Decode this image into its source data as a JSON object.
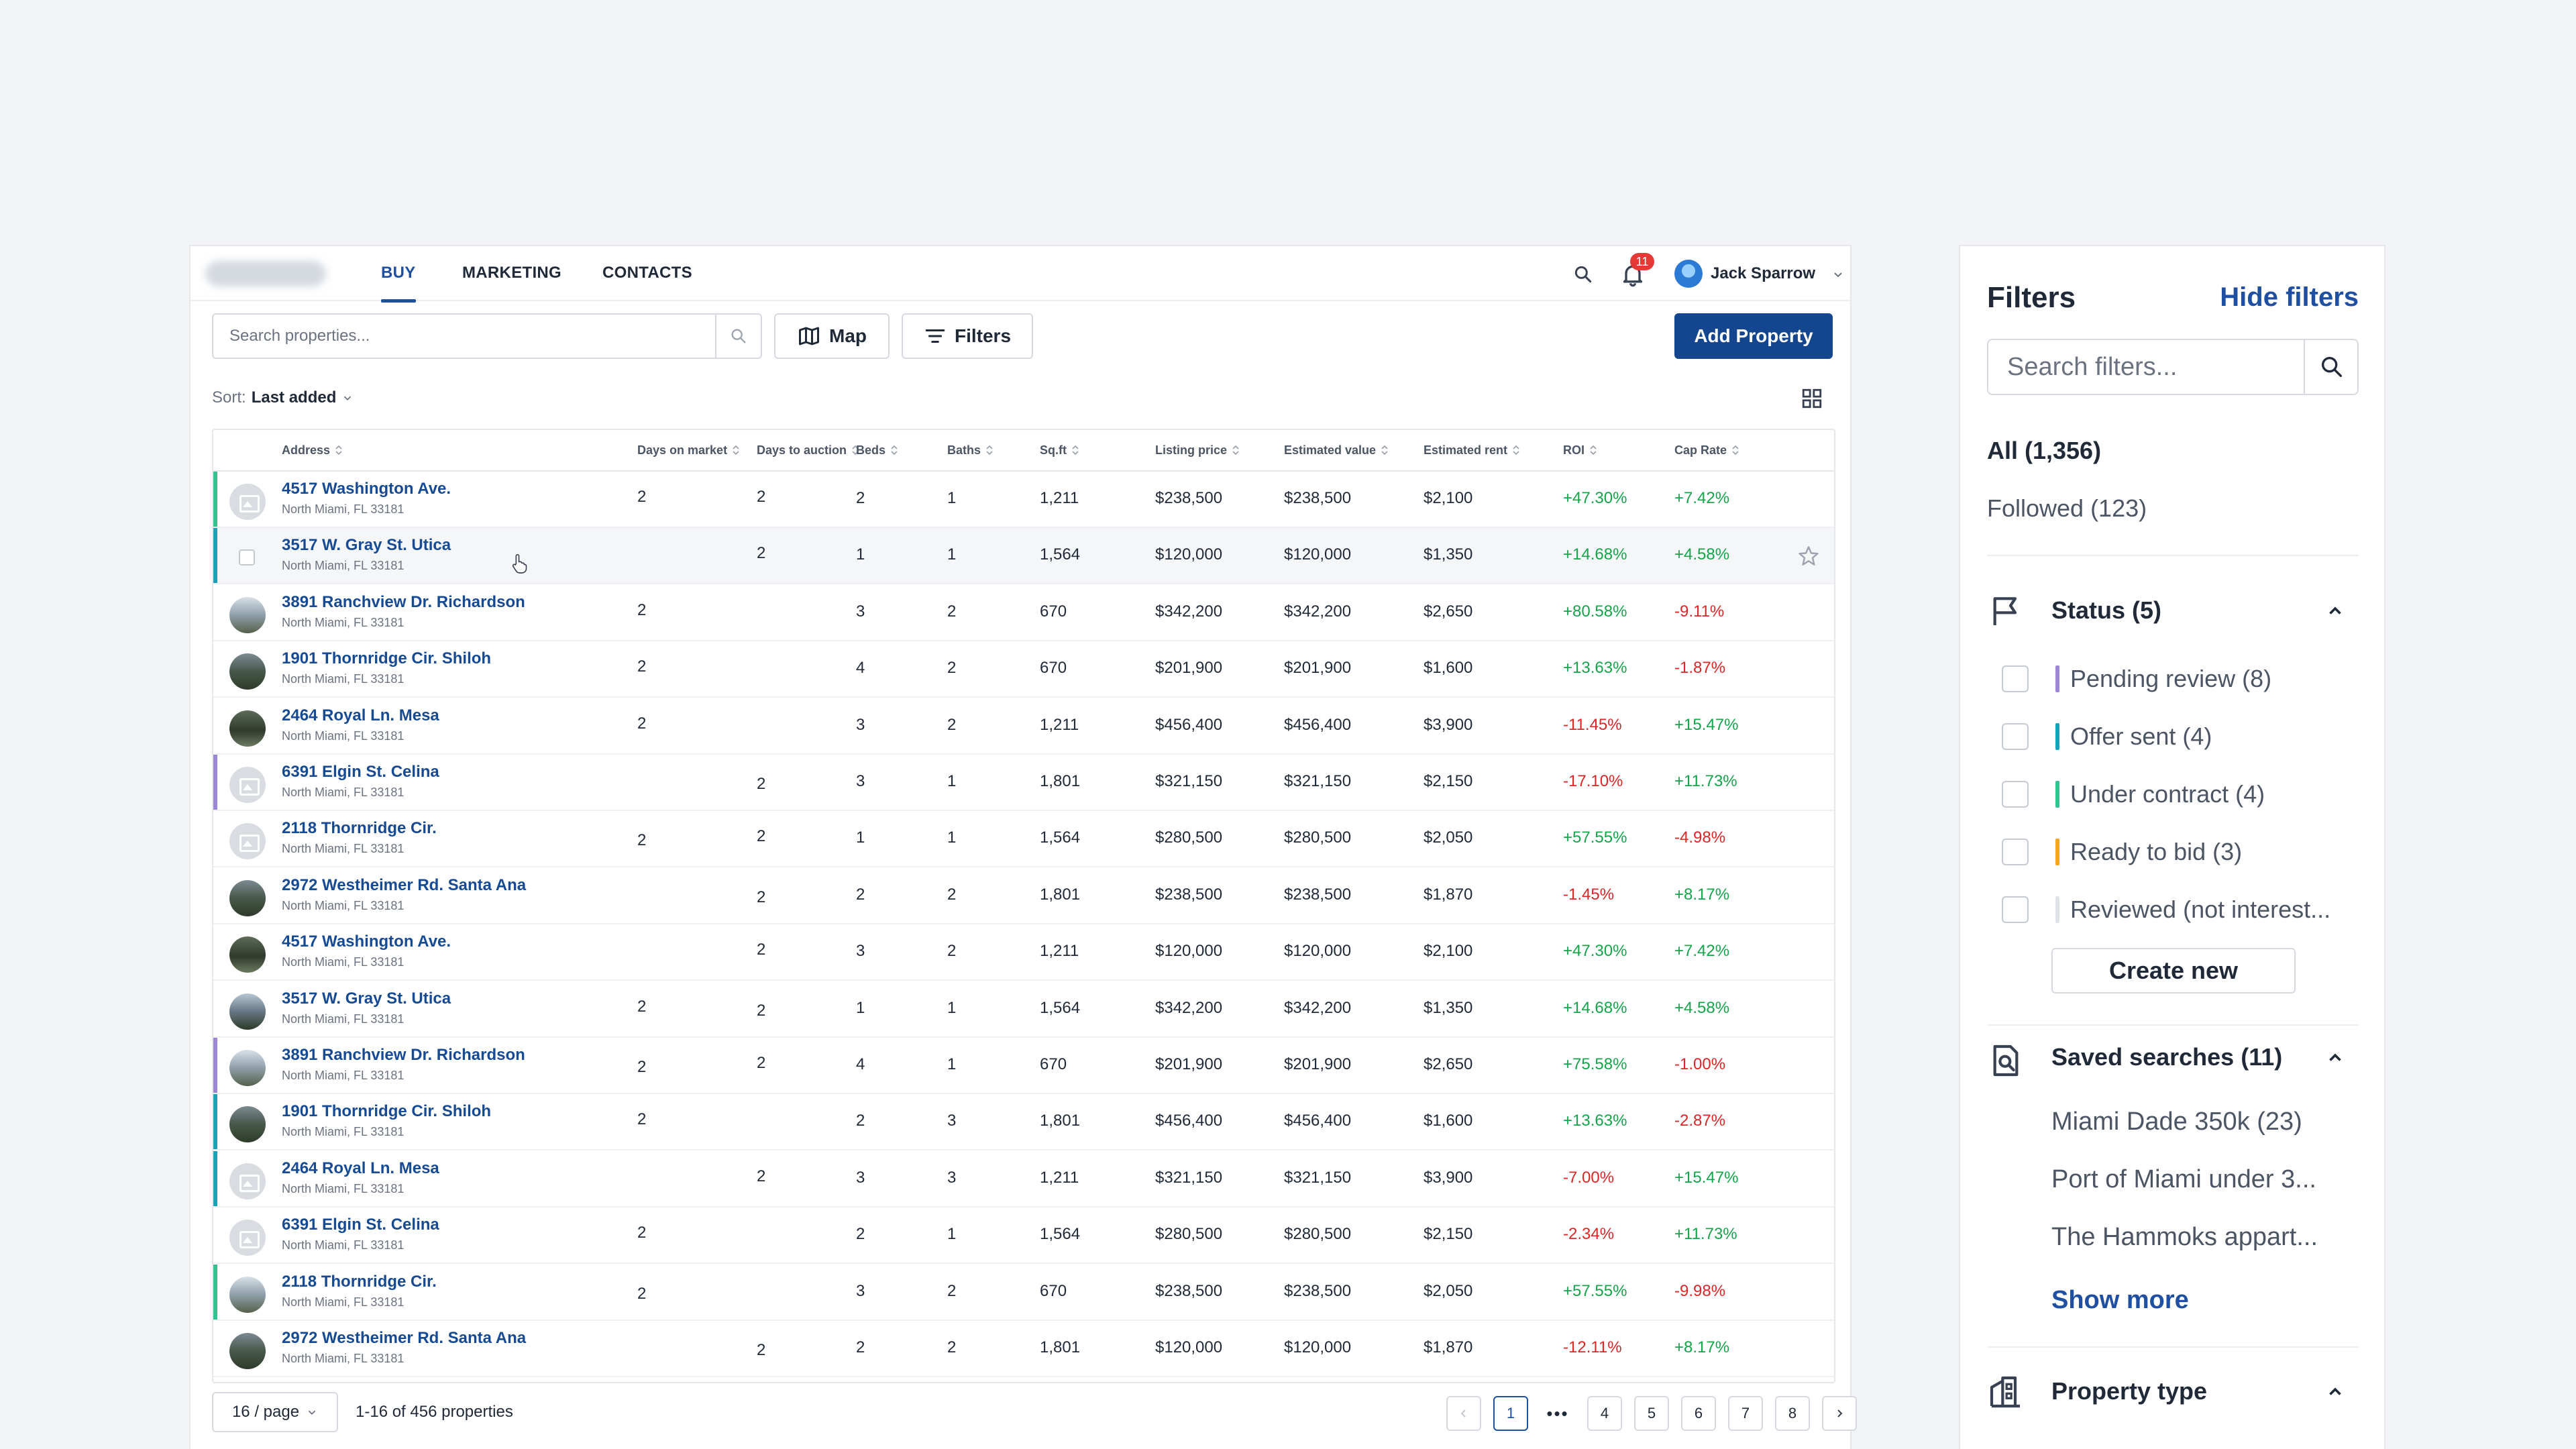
{
  "nav": {
    "tabs": [
      {
        "label": "BUY",
        "active": true
      },
      {
        "label": "MARKETING",
        "active": false
      },
      {
        "label": "CONTACTS",
        "active": false
      }
    ],
    "notifications_count": "11",
    "user_name": "Jack Sparrow"
  },
  "toolbar": {
    "search_placeholder": "Search properties...",
    "map_label": "Map",
    "filters_label": "Filters",
    "add_label": "Add Property"
  },
  "sort": {
    "label": "Sort:",
    "value": "Last added"
  },
  "table": {
    "columns": [
      "Address",
      "Days on market",
      "Days to auction",
      "Beds",
      "Baths",
      "Sq.ft",
      "Listing price",
      "Estimated value",
      "Estimated rent",
      "ROI",
      "Cap Rate"
    ],
    "rows": [
      {
        "address": "4517 Washington Ave.",
        "city": "North Miami, FL 33181",
        "dom": "2",
        "dta": "2",
        "beds": "2",
        "baths": "1",
        "sqft": "1,211",
        "price": "$238,500",
        "value": "$238,500",
        "rent": "$2,100",
        "roi": "+47.30%",
        "cap": "+7.42%",
        "status_color": "#34c38f",
        "thumb": "placeholder"
      },
      {
        "address": "3517 W. Gray St. Utica",
        "city": "North Miami, FL 33181",
        "dom": "",
        "dta": "2",
        "beds": "1",
        "baths": "1",
        "sqft": "1,564",
        "price": "$120,000",
        "value": "$120,000",
        "rent": "$1,350",
        "roi": "+14.68%",
        "cap": "+4.58%",
        "status_color": "#1aa3b8",
        "thumb": "checkbox",
        "hover": true
      },
      {
        "address": "3891 Ranchview Dr. Richardson",
        "city": "North Miami, FL 33181",
        "dom": "2",
        "dta": "",
        "beds": "3",
        "baths": "2",
        "sqft": "670",
        "price": "$342,200",
        "value": "$342,200",
        "rent": "$2,650",
        "roi": "+80.58%",
        "cap": "-9.11%",
        "status_color": "",
        "thumb": "photo"
      },
      {
        "address": "1901 Thornridge Cir. Shiloh",
        "city": "North Miami, FL 33181",
        "dom": "2",
        "dta": "",
        "beds": "4",
        "baths": "2",
        "sqft": "670",
        "price": "$201,900",
        "value": "$201,900",
        "rent": "$1,600",
        "roi": "+13.63%",
        "cap": "-1.87%",
        "status_color": "",
        "thumb": "photo"
      },
      {
        "address": "2464 Royal Ln. Mesa",
        "city": "North Miami, FL 33181",
        "dom": "2",
        "dta": "",
        "beds": "3",
        "baths": "2",
        "sqft": "1,211",
        "price": "$456,400",
        "value": "$456,400",
        "rent": "$3,900",
        "roi": "-11.45%",
        "cap": "+15.47%",
        "status_color": "",
        "thumb": "photo"
      },
      {
        "address": "6391 Elgin St. Celina",
        "city": "North Miami, FL 33181",
        "dom": "",
        "dta": "2",
        "beds": "3",
        "baths": "1",
        "sqft": "1,801",
        "price": "$321,150",
        "value": "$321,150",
        "rent": "$2,150",
        "roi": "-17.10%",
        "cap": "+11.73%",
        "status_color": "#9b87d6",
        "thumb": "placeholder"
      },
      {
        "address": "2118 Thornridge Cir.",
        "city": "North Miami, FL 33181",
        "dom": "2",
        "dta": "2",
        "beds": "1",
        "baths": "1",
        "sqft": "1,564",
        "price": "$280,500",
        "value": "$280,500",
        "rent": "$2,050",
        "roi": "+57.55%",
        "cap": "-4.98%",
        "status_color": "",
        "thumb": "placeholder"
      },
      {
        "address": "2972 Westheimer Rd. Santa Ana",
        "city": "North Miami, FL 33181",
        "dom": "",
        "dta": "2",
        "beds": "2",
        "baths": "2",
        "sqft": "1,801",
        "price": "$238,500",
        "value": "$238,500",
        "rent": "$1,870",
        "roi": "-1.45%",
        "cap": "+8.17%",
        "status_color": "",
        "thumb": "photo"
      },
      {
        "address": "4517 Washington Ave.",
        "city": "North Miami, FL 33181",
        "dom": "",
        "dta": "2",
        "beds": "3",
        "baths": "2",
        "sqft": "1,211",
        "price": "$120,000",
        "value": "$120,000",
        "rent": "$2,100",
        "roi": "+47.30%",
        "cap": "+7.42%",
        "status_color": "",
        "thumb": "photo"
      },
      {
        "address": "3517 W. Gray St. Utica",
        "city": "North Miami, FL 33181",
        "dom": "2",
        "dta": "2",
        "beds": "1",
        "baths": "1",
        "sqft": "1,564",
        "price": "$342,200",
        "value": "$342,200",
        "rent": "$1,350",
        "roi": "+14.68%",
        "cap": "+4.58%",
        "status_color": "",
        "thumb": "photo"
      },
      {
        "address": "3891 Ranchview Dr. Richardson",
        "city": "North Miami, FL 33181",
        "dom": "2",
        "dta": "2",
        "beds": "4",
        "baths": "1",
        "sqft": "670",
        "price": "$201,900",
        "value": "$201,900",
        "rent": "$2,650",
        "roi": "+75.58%",
        "cap": "-1.00%",
        "status_color": "#9b87d6",
        "thumb": "photo"
      },
      {
        "address": "1901 Thornridge Cir. Shiloh",
        "city": "North Miami, FL 33181",
        "dom": "2",
        "dta": "",
        "beds": "2",
        "baths": "3",
        "sqft": "1,801",
        "price": "$456,400",
        "value": "$456,400",
        "rent": "$1,600",
        "roi": "+13.63%",
        "cap": "-2.87%",
        "status_color": "#1aa3b8",
        "thumb": "photo"
      },
      {
        "address": "2464 Royal Ln. Mesa",
        "city": "North Miami, FL 33181",
        "dom": "",
        "dta": "2",
        "beds": "3",
        "baths": "3",
        "sqft": "1,211",
        "price": "$321,150",
        "value": "$321,150",
        "rent": "$3,900",
        "roi": "-7.00%",
        "cap": "+15.47%",
        "status_color": "#1aa3b8",
        "thumb": "placeholder"
      },
      {
        "address": "6391 Elgin St. Celina",
        "city": "North Miami, FL 33181",
        "dom": "2",
        "dta": "",
        "beds": "2",
        "baths": "1",
        "sqft": "1,564",
        "price": "$280,500",
        "value": "$280,500",
        "rent": "$2,150",
        "roi": "-2.34%",
        "cap": "+11.73%",
        "status_color": "",
        "thumb": "placeholder"
      },
      {
        "address": "2118 Thornridge Cir.",
        "city": "North Miami, FL 33181",
        "dom": "2",
        "dta": "",
        "beds": "3",
        "baths": "2",
        "sqft": "670",
        "price": "$238,500",
        "value": "$238,500",
        "rent": "$2,050",
        "roi": "+57.55%",
        "cap": "-9.98%",
        "status_color": "#34c38f",
        "thumb": "photo"
      },
      {
        "address": "2972 Westheimer Rd. Santa Ana",
        "city": "North Miami, FL 33181",
        "dom": "",
        "dta": "2",
        "beds": "2",
        "baths": "2",
        "sqft": "1,801",
        "price": "$120,000",
        "value": "$120,000",
        "rent": "$1,870",
        "roi": "-12.11%",
        "cap": "+8.17%",
        "status_color": "",
        "thumb": "photo"
      }
    ]
  },
  "pagination": {
    "per_page": "16 / page",
    "range": "1-16 of 456 properties",
    "pages": [
      "1",
      "4",
      "5",
      "6",
      "7",
      "8"
    ],
    "current": "1",
    "ellipsis": "•••"
  },
  "filters": {
    "title": "Filters",
    "hide_label": "Hide filters",
    "search_placeholder": "Search filters...",
    "all_label": "All (1,356)",
    "followed_label": "Followed (123)",
    "status": {
      "title": "Status (5)",
      "items": [
        {
          "label": "Pending review (8)",
          "color": "#9b87d6"
        },
        {
          "label": "Offer sent (4)",
          "color": "#1aa3b8"
        },
        {
          "label": "Under contract (4)",
          "color": "#34c38f"
        },
        {
          "label": "Ready to bid (3)",
          "color": "#f5a524"
        },
        {
          "label": "Reviewed (not interest...",
          "color": "#dfe2e6"
        }
      ],
      "create_label": "Create new"
    },
    "saved": {
      "title": "Saved searches (11)",
      "items": [
        "Miami Dade 350k (23)",
        "Port of Miami under 3...",
        "The Hammoks appart..."
      ],
      "show_more": "Show more"
    },
    "property_type": {
      "title": "Property type"
    }
  }
}
